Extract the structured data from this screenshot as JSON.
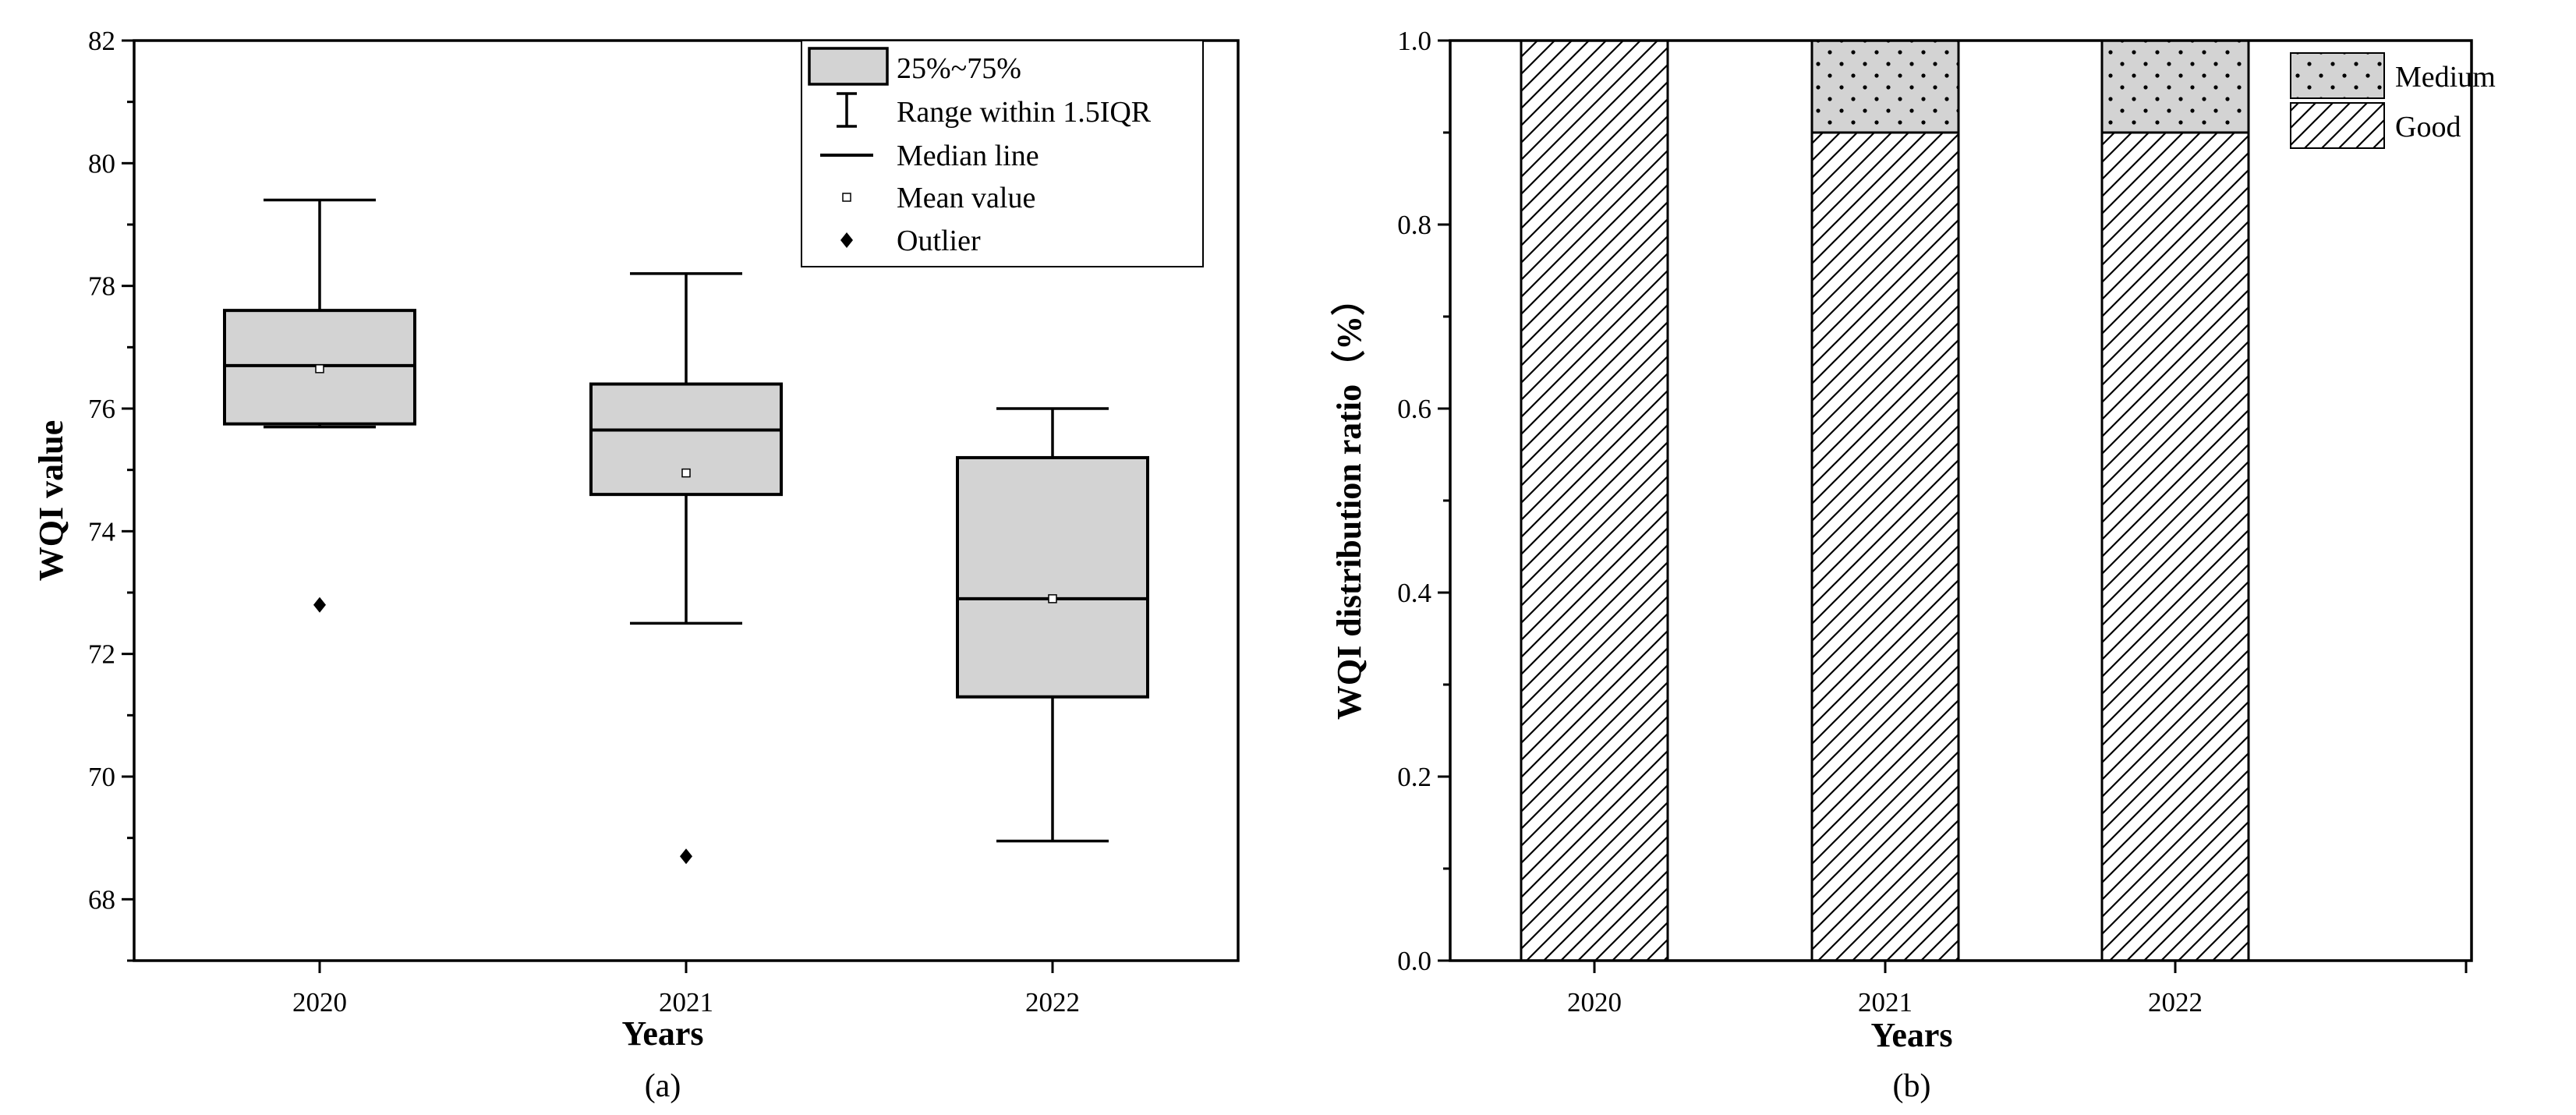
{
  "chart_data": [
    {
      "panel_label": "(a)",
      "type": "box",
      "title": "",
      "xlabel": "Years",
      "ylabel": "WQI value",
      "categories": [
        "2020",
        "2021",
        "2022"
      ],
      "ylim": [
        67,
        82
      ],
      "yticks": [
        68,
        70,
        72,
        74,
        76,
        78,
        80,
        82
      ],
      "y_minor_tick_step": 1,
      "grid": false,
      "legend_placement": "top-right",
      "legend": [
        "25%~75%",
        "Range within 1.5IQR",
        "Median line",
        "Mean value",
        "Outlier"
      ],
      "box_fill_color": "#d3d3d3",
      "boxes": [
        {
          "category": "2020",
          "q1": 75.75,
          "median": 76.7,
          "q3": 77.6,
          "whisker_low": 75.7,
          "whisker_high": 79.4,
          "mean": 76.65,
          "outliers": [
            72.8
          ]
        },
        {
          "category": "2021",
          "q1": 74.6,
          "median": 75.65,
          "q3": 76.4,
          "whisker_low": 72.5,
          "whisker_high": 78.2,
          "mean": 74.95,
          "outliers": [
            68.7
          ]
        },
        {
          "category": "2022",
          "q1": 71.3,
          "median": 72.9,
          "q3": 75.2,
          "whisker_low": 68.95,
          "whisker_high": 76.0,
          "mean": 72.9,
          "outliers": []
        }
      ]
    },
    {
      "panel_label": "(b)",
      "type": "stacked-bar",
      "title": "",
      "xlabel": "Years",
      "ylabel": "WQI distribution ratio（%）",
      "categories": [
        "2020",
        "2021",
        "2022"
      ],
      "ylim": [
        0,
        1.0
      ],
      "yticks": [
        0.0,
        0.2,
        0.4,
        0.6,
        0.8,
        1.0
      ],
      "ytick_labels": [
        "0.0",
        "0.2",
        "0.4",
        "0.6",
        "0.8",
        "1.0"
      ],
      "y_minor_tick_step": 0.1,
      "grid": false,
      "legend_placement": "top-right",
      "series": [
        {
          "name": "Good",
          "pattern": "diagonal-hatch",
          "values": [
            1.0,
            0.9,
            0.9
          ]
        },
        {
          "name": "Medium",
          "pattern": "dots",
          "values": [
            0.0,
            0.1,
            0.1
          ]
        }
      ],
      "legend_order": [
        "Medium",
        "Good"
      ]
    }
  ]
}
